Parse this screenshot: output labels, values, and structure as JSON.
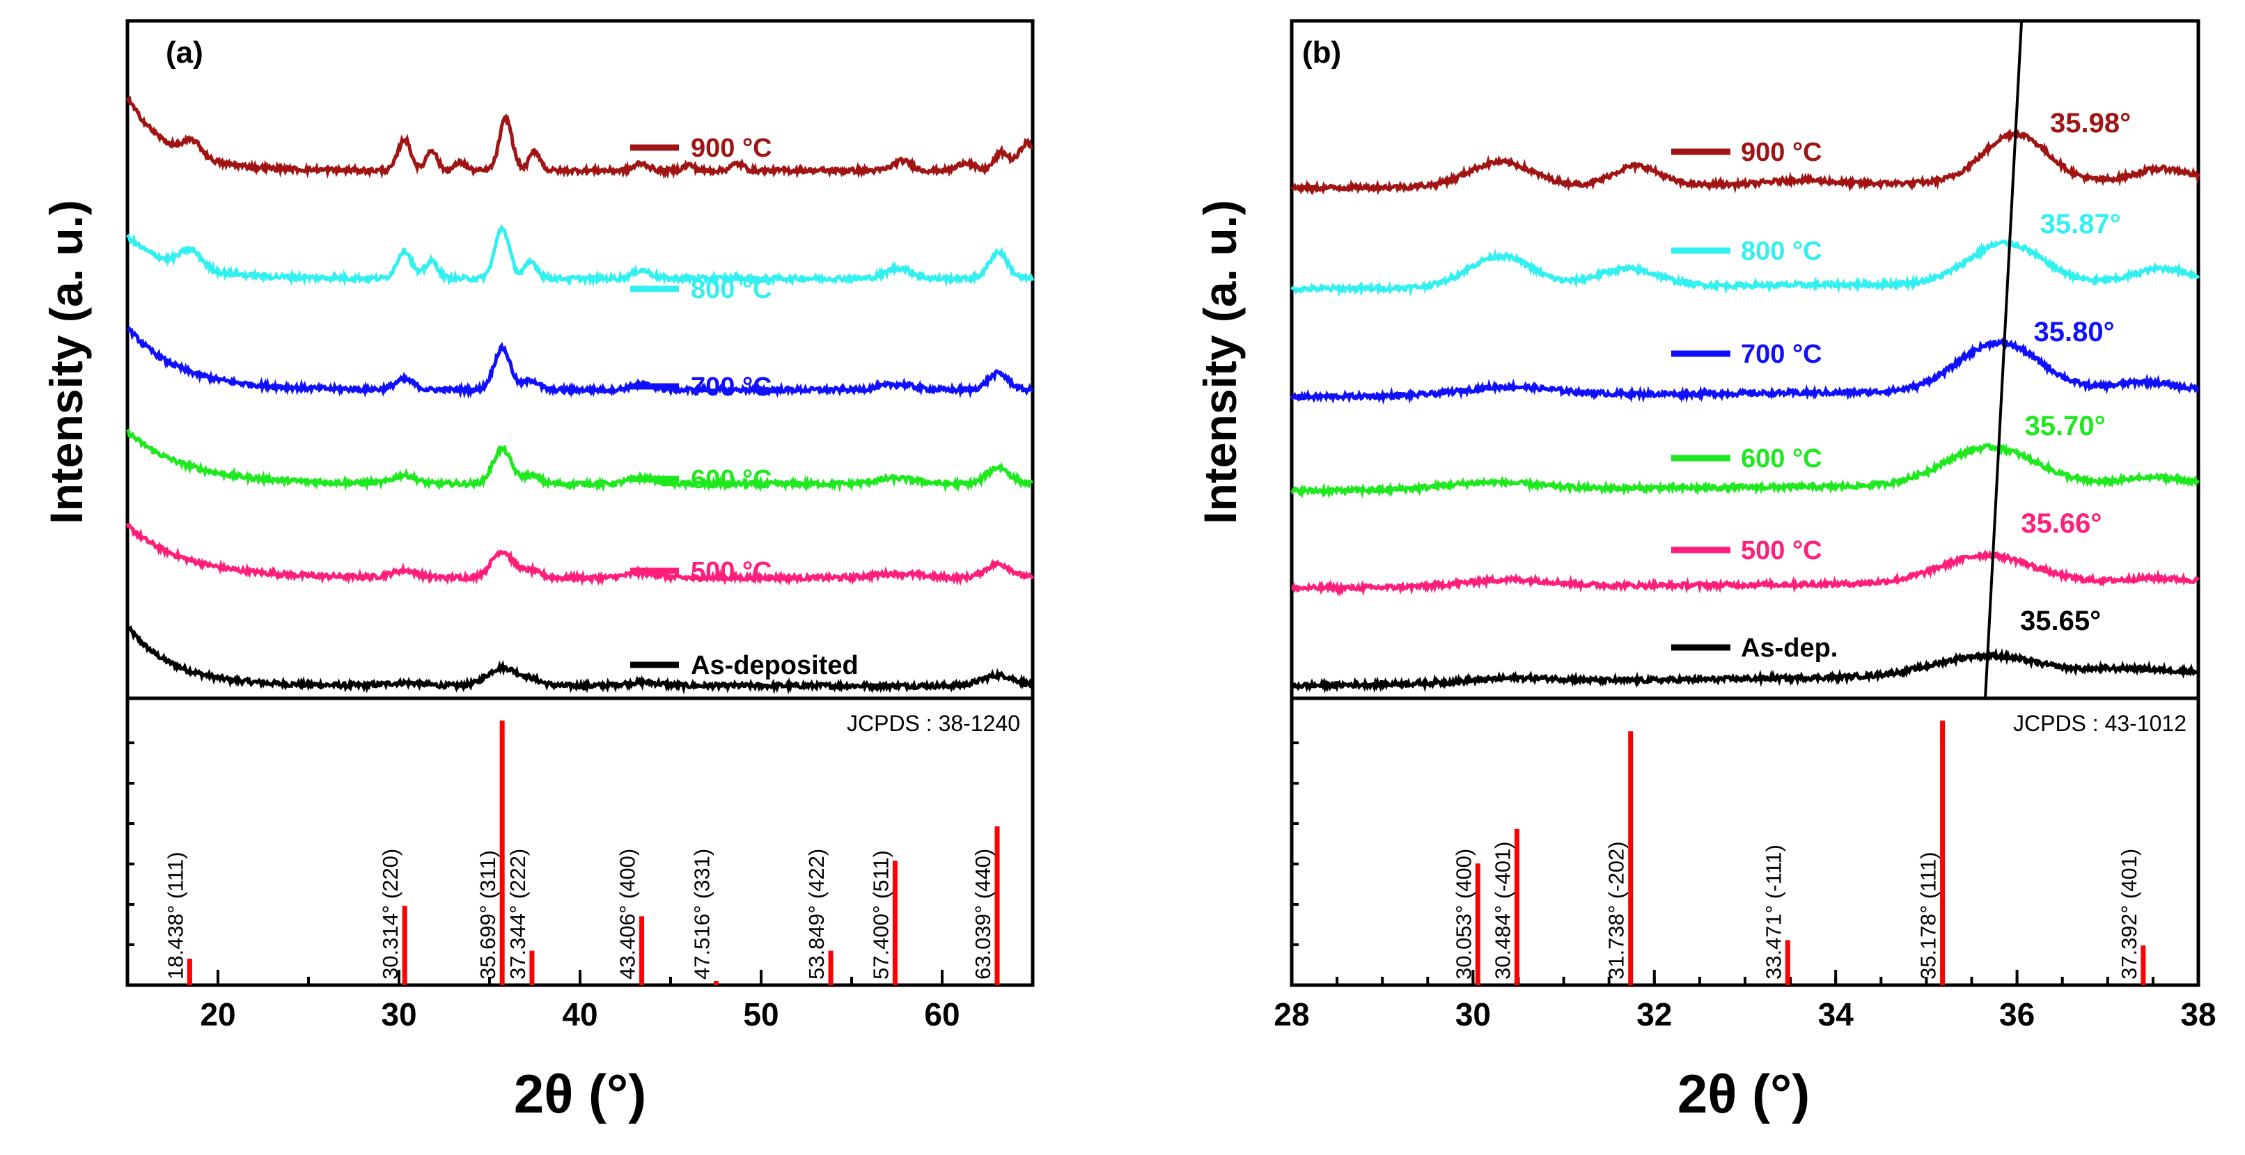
{
  "chart_data": [
    {
      "type": "line",
      "panel_label": "(a)",
      "ylabel": "Intensity (a. u.)",
      "xlabel": "2θ (°)",
      "xlim": [
        15,
        65
      ],
      "x_ticks": [
        20,
        30,
        40,
        50,
        60
      ],
      "series": [
        {
          "name": "As-deposited",
          "color": "#000000",
          "offset": 0,
          "peaks": [
            [
              30.3,
              4,
              1.0
            ],
            [
              35.7,
              26,
              0.8
            ],
            [
              37.3,
              8,
              0.6
            ],
            [
              43.4,
              5,
              1.0
            ],
            [
              63.1,
              15,
              0.9
            ]
          ],
          "decay": [
            85,
            2.5
          ]
        },
        {
          "name": "500 °C",
          "color": "#ff1f7a",
          "offset": 155,
          "peaks": [
            [
              30.3,
              10,
              0.7
            ],
            [
              35.7,
              38,
              0.6
            ],
            [
              37.3,
              10,
              0.5
            ],
            [
              43.4,
              7,
              0.8
            ],
            [
              57.5,
              6,
              1.3
            ],
            [
              63.1,
              20,
              0.7
            ]
          ],
          "decay": [
            75,
            3.2
          ]
        },
        {
          "name": "600 °C",
          "color": "#1ee81e",
          "offset": 290,
          "peaks": [
            [
              30.3,
              12,
              0.6
            ],
            [
              35.7,
              50,
              0.5
            ],
            [
              37.3,
              12,
              0.45
            ],
            [
              43.4,
              9,
              0.7
            ],
            [
              57.5,
              8,
              1.1
            ],
            [
              63.1,
              24,
              0.6
            ]
          ],
          "decay": [
            75,
            3.2
          ]
        },
        {
          "name": "700 °C",
          "color": "#1010ff",
          "offset": 425,
          "peaks": [
            [
              30.3,
              15,
              0.5
            ],
            [
              35.7,
              60,
              0.45
            ],
            [
              37.3,
              14,
              0.4
            ],
            [
              43.4,
              8,
              0.6
            ],
            [
              57.5,
              8,
              0.9
            ],
            [
              63.1,
              24,
              0.55
            ]
          ],
          "decay": [
            90,
            2.8
          ]
        },
        {
          "name": "800 °C",
          "color": "#33f0f0",
          "offset": 585,
          "peaks": [
            [
              30.3,
              40,
              0.4
            ],
            [
              31.8,
              25,
              0.35
            ],
            [
              35.7,
              72,
              0.4
            ],
            [
              37.3,
              24,
              0.35
            ],
            [
              43.4,
              12,
              0.5
            ],
            [
              57.6,
              15,
              0.7
            ],
            [
              63.1,
              38,
              0.5
            ],
            [
              18.5,
              26,
              0.6
            ]
          ],
          "decay": [
            60,
            2.6
          ]
        },
        {
          "name": "900 °C",
          "color": "#a01414",
          "offset": 740,
          "peaks": [
            [
              18.6,
              22,
              0.5
            ],
            [
              30.3,
              45,
              0.35
            ],
            [
              31.8,
              30,
              0.3
            ],
            [
              33.4,
              12,
              0.3
            ],
            [
              35.9,
              75,
              0.35
            ],
            [
              37.5,
              28,
              0.3
            ],
            [
              43.4,
              10,
              0.4
            ],
            [
              46,
              8,
              0.3
            ],
            [
              48.7,
              10,
              0.35
            ],
            [
              57.8,
              14,
              0.5
            ],
            [
              61.3,
              12,
              0.4
            ],
            [
              63.3,
              26,
              0.4
            ],
            [
              64.7,
              40,
              0.45
            ]
          ],
          "decay": [
            105,
            2.3
          ]
        }
      ],
      "reference": {
        "label": "JCPDS : 38-1240",
        "lines": [
          {
            "two_theta": 18.438,
            "hkl": "(111)",
            "label": "18.438° (111)",
            "intensity": 10
          },
          {
            "two_theta": 30.314,
            "hkl": "(220)",
            "label": "30.314° (220)",
            "intensity": 30
          },
          {
            "two_theta": 35.699,
            "hkl": "(311)",
            "label": "35.699° (311)",
            "intensity": 100
          },
          {
            "two_theta": 37.344,
            "hkl": "(222)",
            "label": "37.344° (222)",
            "intensity": 13
          },
          {
            "two_theta": 43.406,
            "hkl": "(400)",
            "label": "43.406° (400)",
            "intensity": 26
          },
          {
            "two_theta": 47.516,
            "hkl": "(331)",
            "label": "47.516° (331)",
            "intensity": 1.5
          },
          {
            "two_theta": 53.849,
            "hkl": "(422)",
            "label": "53.849° (422)",
            "intensity": 13
          },
          {
            "two_theta": 57.4,
            "hkl": "(511)",
            "label": "57.400° (511)",
            "intensity": 47
          },
          {
            "two_theta": 63.039,
            "hkl": "(440)",
            "label": "63.039° (440)",
            "intensity": 60
          }
        ]
      }
    },
    {
      "type": "line",
      "panel_label": "(b)",
      "ylabel": "Intensity (a. u.)",
      "xlabel": "2θ (°)",
      "xlim": [
        28,
        38
      ],
      "x_ticks": [
        28,
        30,
        32,
        34,
        36,
        38
      ],
      "series": [
        {
          "name": "As-dep.",
          "color": "#000000",
          "offset": 0,
          "peak_position": "35.65°",
          "peak_x": 35.65,
          "peaks": [
            [
              30.5,
              6,
              0.5
            ],
            [
              35.65,
              28,
              0.55
            ],
            [
              37.2,
              6,
              0.4
            ]
          ],
          "base_slope": 2
        },
        {
          "name": "500 °C",
          "color": "#ff1f7a",
          "offset": 140,
          "peak_position": "35.66°",
          "peak_x": 35.66,
          "peaks": [
            [
              30.4,
              10,
              0.5
            ],
            [
              35.66,
              40,
              0.5
            ],
            [
              37.5,
              5,
              0.3
            ]
          ],
          "base_slope": 1
        },
        {
          "name": "600 °C",
          "color": "#1ee81e",
          "offset": 280,
          "peak_position": "35.70°",
          "peak_x": 35.7,
          "peaks": [
            [
              30.2,
              10,
              0.5
            ],
            [
              35.7,
              55,
              0.5
            ],
            [
              37.5,
              10,
              0.3
            ]
          ],
          "base_slope": 1
        },
        {
          "name": "700 °C",
          "color": "#1010ff",
          "offset": 415,
          "peak_position": "35.80°",
          "peak_x": 35.8,
          "peaks": [
            [
              30.4,
              12,
              0.5
            ],
            [
              35.8,
              70,
              0.45
            ],
            [
              37.4,
              12,
              0.3
            ]
          ],
          "base_slope": 1
        },
        {
          "name": "800 °C",
          "color": "#33f0f0",
          "offset": 570,
          "peak_position": "35.87°",
          "peak_x": 35.87,
          "peaks": [
            [
              30.3,
              45,
              0.35
            ],
            [
              31.7,
              25,
              0.35
            ],
            [
              35.87,
              58,
              0.4
            ],
            [
              37.6,
              20,
              0.3
            ]
          ],
          "base_slope": 1
        },
        {
          "name": "900 °C",
          "color": "#a01414",
          "offset": 715,
          "peak_position": "35.98°",
          "peak_x": 35.98,
          "peaks": [
            [
              30.3,
              35,
              0.35
            ],
            [
              31.8,
              28,
              0.25
            ],
            [
              33.6,
              6,
              0.3
            ],
            [
              35.98,
              70,
              0.35
            ],
            [
              37.6,
              18,
              0.3
            ]
          ],
          "base_slope": 1
        }
      ],
      "reference": {
        "label": "JCPDS : 43-1012",
        "lines": [
          {
            "two_theta": 30.053,
            "hkl": "(400)",
            "label": "30.053° (400)",
            "intensity": 46
          },
          {
            "two_theta": 30.484,
            "hkl": "(-401)",
            "label": "30.484° (-401)",
            "intensity": 59
          },
          {
            "two_theta": 31.738,
            "hkl": "(-202)",
            "label": "31.738° (-202)",
            "intensity": 96
          },
          {
            "two_theta": 33.471,
            "hkl": "(-111)",
            "label": "33.471° (-111)",
            "intensity": 17
          },
          {
            "two_theta": 35.178,
            "hkl": "(111)",
            "label": "35.178° (111)",
            "intensity": 100
          },
          {
            "two_theta": 37.392,
            "hkl": "(401)",
            "label": "37.392° (401)",
            "intensity": 15
          }
        ]
      }
    }
  ]
}
